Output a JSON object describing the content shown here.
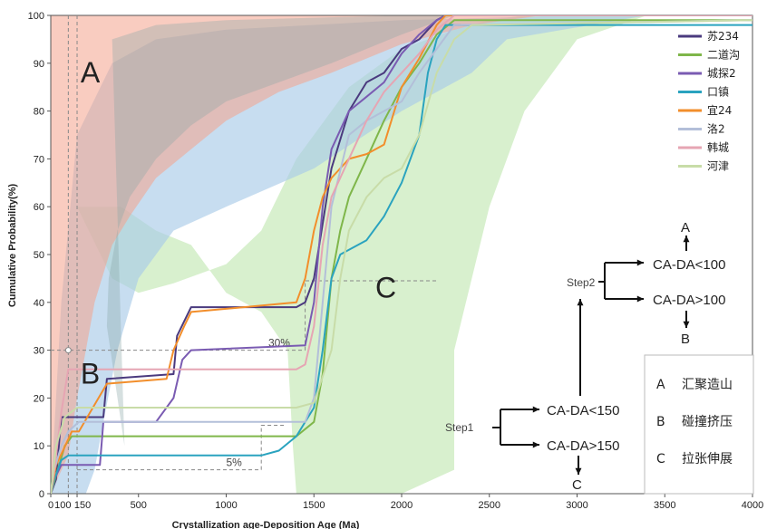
{
  "chart_data": {
    "type": "line",
    "xlabel": "Crystallization age-Deposition Age (Ma)",
    "ylabel": "Cumulative Probability(%)",
    "xlim": [
      0,
      4000
    ],
    "ylim": [
      0,
      100
    ],
    "x_ticks": [
      0,
      100,
      150,
      500,
      1000,
      1500,
      2000,
      2500,
      3000,
      3500,
      4000
    ],
    "y_ticks": [
      0,
      10,
      20,
      30,
      40,
      50,
      60,
      70,
      80,
      90,
      100
    ],
    "zones": [
      {
        "label": "A",
        "color": "#f4a28c",
        "upper": [
          [
            0,
            0
          ],
          [
            4000,
            100
          ]
        ],
        "lower": [
          [
            0,
            0
          ],
          [
            4000,
            100
          ]
        ]
      },
      {
        "label": "B",
        "color": "#a9cbe8"
      },
      {
        "label": "C",
        "color": "#b8e3a6"
      }
    ],
    "series": [
      {
        "name": "苏234",
        "color": "#4a3a7e",
        "x": [
          0,
          30,
          60,
          100,
          300,
          320,
          700,
          720,
          800,
          1400,
          1450,
          1500,
          1600,
          1700,
          1800,
          1900,
          2000,
          2100,
          2150,
          2200,
          2250,
          4000
        ],
        "y": [
          0,
          3,
          16,
          16,
          16,
          24,
          25,
          33,
          39,
          39,
          40,
          45,
          68,
          80,
          86,
          88,
          93,
          95,
          97,
          99,
          100,
          100
        ]
      },
      {
        "name": "二道沟",
        "color": "#7fb64a",
        "x": [
          0,
          40,
          80,
          120,
          160,
          200,
          1400,
          1500,
          1550,
          1600,
          1650,
          1700,
          1800,
          1900,
          2000,
          2100,
          2200,
          2300,
          4000
        ],
        "y": [
          0,
          5,
          10,
          12,
          12,
          12,
          12,
          15,
          25,
          45,
          55,
          62,
          70,
          78,
          85,
          90,
          96,
          99,
          99
        ]
      },
      {
        "name": "城探2",
        "color": "#7a5bb2",
        "x": [
          0,
          20,
          60,
          280,
          300,
          600,
          700,
          750,
          800,
          1450,
          1500,
          1550,
          1600,
          1700,
          1800,
          1900,
          2000,
          2100,
          2200,
          2250,
          4000
        ],
        "y": [
          0,
          3,
          6,
          6,
          15,
          15,
          20,
          28,
          30,
          31,
          40,
          60,
          72,
          80,
          83,
          86,
          92,
          96,
          99,
          100,
          100
        ]
      },
      {
        "name": "口镇",
        "color": "#2aa3bf",
        "x": [
          0,
          20,
          60,
          100,
          200,
          1200,
          1300,
          1400,
          1500,
          1550,
          1600,
          1650,
          1700,
          1800,
          1900,
          2000,
          2100,
          2150,
          2200,
          2250,
          4000
        ],
        "y": [
          0,
          3,
          7,
          8,
          8,
          8,
          9,
          12,
          18,
          30,
          45,
          50,
          51,
          53,
          58,
          65,
          75,
          88,
          95,
          98,
          98
        ]
      },
      {
        "name": "宜24",
        "color": "#f28e2b",
        "x": [
          0,
          30,
          70,
          120,
          160,
          320,
          660,
          700,
          760,
          800,
          1400,
          1450,
          1500,
          1550,
          1600,
          1700,
          1800,
          1900,
          2000,
          2100,
          2200,
          2250,
          2500,
          4000
        ],
        "y": [
          0,
          6,
          9,
          13,
          13,
          23,
          24,
          30,
          35,
          38,
          40,
          45,
          55,
          62,
          66,
          70,
          71,
          73,
          85,
          91,
          98,
          100,
          100,
          100
        ]
      },
      {
        "name": "洛2",
        "color": "#b3bfd9",
        "x": [
          0,
          20,
          60,
          100,
          160,
          380,
          1450,
          1500,
          1550,
          1600,
          1700,
          1800,
          1900,
          2000,
          2100,
          2200,
          2300,
          4000
        ],
        "y": [
          0,
          5,
          10,
          13,
          15,
          15,
          15,
          20,
          40,
          60,
          75,
          78,
          80,
          82,
          88,
          93,
          98,
          99
        ]
      },
      {
        "name": "韩城",
        "color": "#e6a5b3",
        "x": [
          0,
          20,
          60,
          100,
          1400,
          1450,
          1500,
          1550,
          1600,
          1700,
          1800,
          1900,
          2000,
          2100,
          2200,
          2300,
          4000
        ],
        "y": [
          0,
          5,
          17,
          26,
          26,
          27,
          35,
          52,
          62,
          70,
          78,
          84,
          88,
          92,
          97,
          100,
          100
        ]
      },
      {
        "name": "河津",
        "color": "#c8dca8",
        "x": [
          0,
          30,
          80,
          150,
          200,
          1400,
          1500,
          1600,
          1650,
          1700,
          1800,
          1900,
          2000,
          2100,
          2200,
          2300,
          2400,
          4000
        ],
        "y": [
          0,
          10,
          16,
          18,
          18,
          18,
          19,
          30,
          45,
          55,
          62,
          66,
          68,
          75,
          88,
          95,
          98,
          99
        ]
      }
    ],
    "reference_lines": [
      {
        "label": "30%",
        "y": 30
      },
      {
        "label": "5%",
        "y": 5
      }
    ],
    "vlines": [
      100,
      150
    ],
    "zone_labels": [
      "A",
      "B",
      "C"
    ],
    "flow": {
      "step1": "Step1",
      "step2": "Step2",
      "step1_upper": "CA-DA<150",
      "step1_lower": "CA-DA>150",
      "step1_lower_result": "C",
      "step2_upper": "CA-DA<100",
      "step2_lower": "CA-DA>100",
      "step2_upper_result": "A",
      "step2_lower_result": "B"
    },
    "key": [
      {
        "letter": "A",
        "text": "汇聚造山"
      },
      {
        "letter": "B",
        "text": "碰撞挤压"
      },
      {
        "letter": "C",
        "text": "拉张伸展"
      }
    ],
    "legend_position": "top-right"
  }
}
